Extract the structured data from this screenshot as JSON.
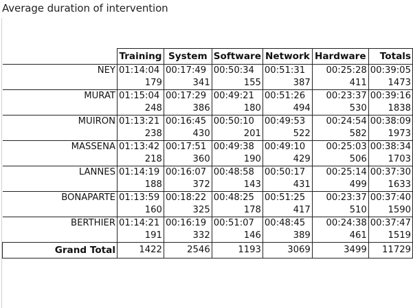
{
  "title": "Average duration of intervention",
  "columns": [
    "Training",
    "System",
    "Software",
    "Network",
    "Hardware",
    "Totals"
  ],
  "rows": [
    {
      "name": "NEY",
      "durations": [
        "01:14:04",
        "00:17:49",
        "00:50:34",
        "00:51:31",
        "00:25:28",
        "00:39:05"
      ],
      "counts": [
        "179",
        "341",
        "155",
        "387",
        "411",
        "1473"
      ]
    },
    {
      "name": "MURAT",
      "durations": [
        "01:15:04",
        "00:17:29",
        "00:49:21",
        "00:51:26",
        "00:23:37",
        "00:39:16"
      ],
      "counts": [
        "248",
        "386",
        "180",
        "494",
        "530",
        "1838"
      ]
    },
    {
      "name": "MUIRON",
      "durations": [
        "01:13:21",
        "00:16:45",
        "00:50:10",
        "00:49:53",
        "00:24:54",
        "00:38:09"
      ],
      "counts": [
        "238",
        "430",
        "201",
        "522",
        "582",
        "1973"
      ]
    },
    {
      "name": "MASSENA",
      "durations": [
        "01:13:42",
        "00:17:51",
        "00:49:38",
        "00:49:10",
        "00:25:03",
        "00:38:34"
      ],
      "counts": [
        "218",
        "360",
        "190",
        "429",
        "506",
        "1703"
      ]
    },
    {
      "name": "LANNES",
      "durations": [
        "01:14:19",
        "00:16:07",
        "00:48:58",
        "00:50:17",
        "00:25:14",
        "00:37:30"
      ],
      "counts": [
        "188",
        "372",
        "143",
        "431",
        "499",
        "1633"
      ]
    },
    {
      "name": "BONAPARTE",
      "durations": [
        "01:13:59",
        "00:18:22",
        "00:48:25",
        "00:51:25",
        "00:23:37",
        "00:37:40"
      ],
      "counts": [
        "160",
        "325",
        "178",
        "417",
        "510",
        "1590"
      ]
    },
    {
      "name": "BERTHIER",
      "durations": [
        "01:14:21",
        "00:16:19",
        "00:51:07",
        "00:48:45",
        "00:24:38",
        "00:37:47"
      ],
      "counts": [
        "191",
        "332",
        "146",
        "389",
        "461",
        "1519"
      ]
    }
  ],
  "grand_total": {
    "label": "Grand Total",
    "values": [
      "1422",
      "2546",
      "1193",
      "3069",
      "3499",
      "11729"
    ]
  }
}
